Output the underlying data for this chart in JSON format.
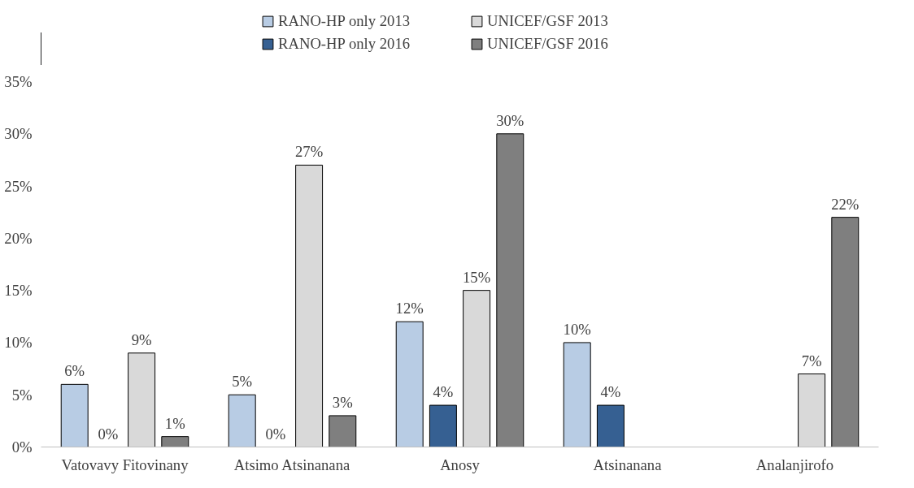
{
  "chart_data": {
    "type": "bar",
    "categories": [
      "Vatovavy Fitovinany",
      "Atsimo Atsinanana",
      "Anosy",
      "Atsinanana",
      "Analanjirofo"
    ],
    "series": [
      {
        "name": "RANO-HP only 2013",
        "color": "#b8cce4",
        "values": [
          6,
          5,
          12,
          10,
          null
        ],
        "value_labels": [
          "6%",
          "5%",
          "12%",
          "10%",
          null
        ]
      },
      {
        "name": "RANO-HP only 2016",
        "color": "#366092",
        "values": [
          0,
          0,
          4,
          4,
          null
        ],
        "value_labels": [
          "0%",
          "0%",
          "4%",
          "4%",
          null
        ]
      },
      {
        "name": "UNICEF/GSF 2013",
        "color": "#d9d9d9",
        "values": [
          9,
          27,
          15,
          null,
          7
        ],
        "value_labels": [
          "9%",
          "27%",
          "15%",
          null,
          "7%"
        ]
      },
      {
        "name": "UNICEF/GSF 2016",
        "color": "#7f7f7f",
        "values": [
          1,
          3,
          30,
          null,
          22
        ],
        "value_labels": [
          "1%",
          "3%",
          "30%",
          null,
          "22%"
        ]
      }
    ],
    "ylim": [
      0,
      35
    ],
    "yticks": [
      {
        "value": 0,
        "label": "0%"
      },
      {
        "value": 5,
        "label": "5%"
      },
      {
        "value": 10,
        "label": "10%"
      },
      {
        "value": 15,
        "label": "15%"
      },
      {
        "value": 20,
        "label": "20%"
      },
      {
        "value": 25,
        "label": "25%"
      },
      {
        "value": 30,
        "label": "30%"
      },
      {
        "value": 35,
        "label": "35%"
      }
    ],
    "grid": false,
    "legend": "top"
  }
}
